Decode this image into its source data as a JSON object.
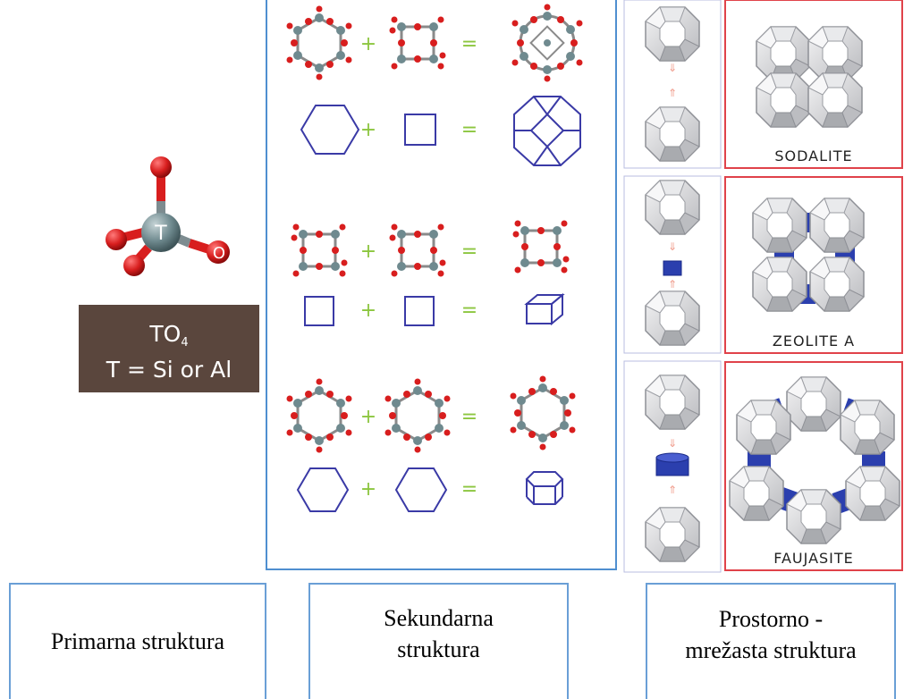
{
  "primary": {
    "atom_t_label": "T",
    "atom_o_label": "O",
    "formula": "TO",
    "formula_sub": "4",
    "composition": "T = Si or Al"
  },
  "secondary": {
    "rows": [
      {
        "left": "hexagon",
        "right": "square",
        "result": "truncated-octahedron",
        "plus": "+",
        "equals": "="
      },
      {
        "left": "square",
        "right": "square",
        "result": "cube",
        "plus": "+",
        "equals": "="
      },
      {
        "left": "hexagon",
        "right": "hexagon",
        "result": "hexagonal-prism",
        "plus": "+",
        "equals": "="
      }
    ]
  },
  "tertiary": {
    "frameworks": [
      {
        "name": "SODALITE",
        "link": "none"
      },
      {
        "name": "ZEOLITE A",
        "link": "cube"
      },
      {
        "name": "FAUJASITE",
        "link": "hexagonal-prism"
      }
    ]
  },
  "labels": {
    "primary": "Primarna struktura",
    "secondary_line1": "Sekundarna",
    "secondary_line2": "struktura",
    "tertiary_line1": "Prostorno -",
    "tertiary_line2": "mrežasta struktura"
  },
  "colors": {
    "oxygen": "#d81e1e",
    "t_atom": "#6f8a8f",
    "outline_blue": "#3a3aa6",
    "plus_green": "#8cc63f",
    "frame_red": "#e0424a",
    "panel_blue": "#4f8fd0",
    "cage_grey": "#cfd0d3",
    "link_blue": "#2b3fae",
    "formula_box": "#5a463d"
  }
}
